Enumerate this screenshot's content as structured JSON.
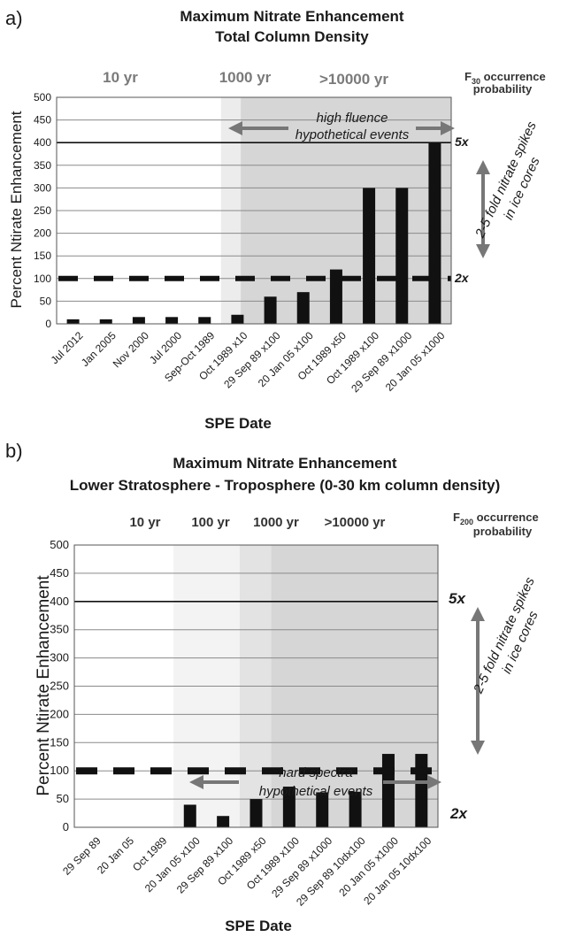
{
  "chart_data": [
    {
      "type": "bar",
      "panel_label": "a)",
      "title": "Maximum Nitrate Enhancement",
      "subtitle": "Total Column Density",
      "xlabel": "SPE Date",
      "ylabel": "Percent Ntirate Enhancement",
      "ylim": [
        0,
        500
      ],
      "yticks": [
        0,
        50,
        100,
        150,
        200,
        250,
        300,
        350,
        400,
        450,
        500
      ],
      "grid": true,
      "categories": [
        "Jul 2012",
        "Jan 2005",
        "Nov 2000",
        "Jul 2000",
        "Sep-Oct 1989",
        "Oct 1989 x10",
        "29 Sep 89 x100",
        "20 Jan 05 x100",
        "Oct 1989 x50",
        "Oct 1989 x100",
        "29 Sep 89 x1000",
        "20 Jan 05 x1000"
      ],
      "values": [
        10,
        10,
        15,
        15,
        15,
        20,
        60,
        70,
        120,
        300,
        300,
        400
      ],
      "reference_lines": [
        {
          "value": 100,
          "label": "2x",
          "style": "dashed"
        },
        {
          "value": 400,
          "label": "5x",
          "style": "solid"
        }
      ],
      "probability_zones": [
        {
          "label": "10 yr",
          "from": 0,
          "to": 5
        },
        {
          "label": "1000 yr",
          "from": 5,
          "to": 5.6
        },
        {
          "label": ">10000 yr",
          "from": 5.6,
          "to": 12
        }
      ],
      "occurrence_label_main": "F",
      "occurrence_label_sub": "30",
      "occurrence_label_rest": " occurrence",
      "occurrence_label_line2": "probability",
      "annotation_line1": "high fluence",
      "annotation_line2": "hypothetical events",
      "spike_line1": "2-5 fold nitrate spikes",
      "spike_line2": "in ice cores"
    },
    {
      "type": "bar",
      "panel_label": "b)",
      "title": "Maximum Nitrate Enhancement",
      "subtitle": "Lower Stratosphere - Troposphere (0-30 km column density)",
      "xlabel": "SPE Date",
      "ylabel": "Percent Ntirate Enhancement",
      "ylim": [
        0,
        500
      ],
      "yticks": [
        0,
        50,
        100,
        150,
        200,
        250,
        300,
        350,
        400,
        450,
        500
      ],
      "grid": true,
      "categories": [
        "29 Sep 89",
        "20 Jan 05",
        "Oct 1989",
        "20 Jan 05 x100",
        "29 Sep 89 x100",
        "Oct 1989 x50",
        "Oct 1989 x100",
        "29 Sep 89 x1000",
        "29 Sep 89 10dx100",
        "20 Jan 05 x1000",
        "20 Jan 05 10dx100"
      ],
      "values": [
        0,
        0,
        0,
        40,
        20,
        50,
        72,
        62,
        63,
        130,
        130
      ],
      "reference_lines": [
        {
          "value": 100,
          "label": "2x",
          "style": "dashed"
        },
        {
          "value": 400,
          "label": "5x",
          "style": "solid"
        }
      ],
      "probability_zones": [
        {
          "label": "10 yr",
          "from": 0,
          "to": 3
        },
        {
          "label": "100 yr",
          "from": 3,
          "to": 5
        },
        {
          "label": "1000 yr",
          "from": 5,
          "to": 5.95
        },
        {
          "label": ">10000 yr",
          "from": 5.95,
          "to": 11
        }
      ],
      "occurrence_label_main": "F",
      "occurrence_label_sub": "200",
      "occurrence_label_rest": " occurrence",
      "occurrence_label_line2": "probability",
      "annotation_line1": "hard spectra",
      "annotation_line2": "hypothetical events",
      "spike_line1": "2-5 fold nitrate spikes",
      "spike_line2": "in ice cores"
    }
  ]
}
